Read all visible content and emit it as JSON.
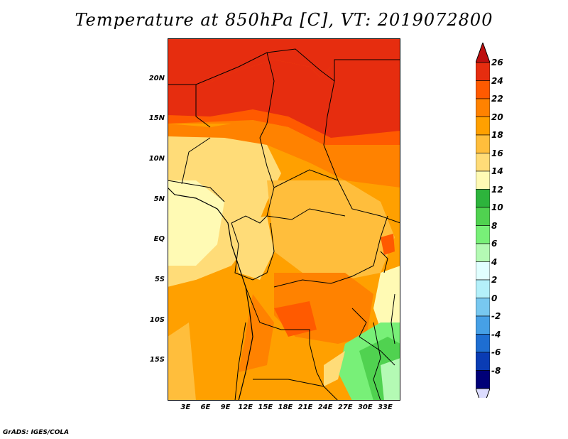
{
  "title": "Temperature at 850hPa [C], VT: 2019072800",
  "credit": "GrADS: IGES/COLA",
  "map": {
    "lat_ticks": [
      {
        "label": "20N",
        "lat": 20
      },
      {
        "label": "15N",
        "lat": 15
      },
      {
        "label": "10N",
        "lat": 10
      },
      {
        "label": "5N",
        "lat": 5
      },
      {
        "label": "EQ",
        "lat": 0
      },
      {
        "label": "5S",
        "lat": -5
      },
      {
        "label": "10S",
        "lat": -10
      },
      {
        "label": "15S",
        "lat": -15
      }
    ],
    "lon_ticks": [
      {
        "label": "3E",
        "lon": 3
      },
      {
        "label": "6E",
        "lon": 6
      },
      {
        "label": "9E",
        "lon": 9
      },
      {
        "label": "12E",
        "lon": 12
      },
      {
        "label": "15E",
        "lon": 15
      },
      {
        "label": "18E",
        "lon": 18
      },
      {
        "label": "21E",
        "lon": 21
      },
      {
        "label": "24E",
        "lon": 24
      },
      {
        "label": "27E",
        "lon": 27
      },
      {
        "label": "30E",
        "lon": 30
      },
      {
        "label": "33E",
        "lon": 33
      }
    ],
    "lon_range": [
      0.3,
      35.3
    ],
    "lat_range": [
      -20,
      25
    ]
  },
  "colorbar": {
    "levels": [
      "26",
      "24",
      "22",
      "20",
      "18",
      "16",
      "14",
      "12",
      "10",
      "8",
      "6",
      "4",
      "2",
      "0",
      "-2",
      "-4",
      "-6",
      "-8"
    ],
    "colors": [
      "#e62d0f",
      "#ff5a00",
      "#ff8200",
      "#ffa000",
      "#ffbe3c",
      "#ffdc78",
      "#fffab4",
      "#2db43c",
      "#50d250",
      "#78f078",
      "#b4fab4",
      "#e1ffff",
      "#b4f0fa",
      "#78c8f0",
      "#46a0e6",
      "#1e6ed2",
      "#0a3cb4",
      "#000078"
    ],
    "top_color": "#be0f0f",
    "bottom_color": "#dcdcff"
  }
}
